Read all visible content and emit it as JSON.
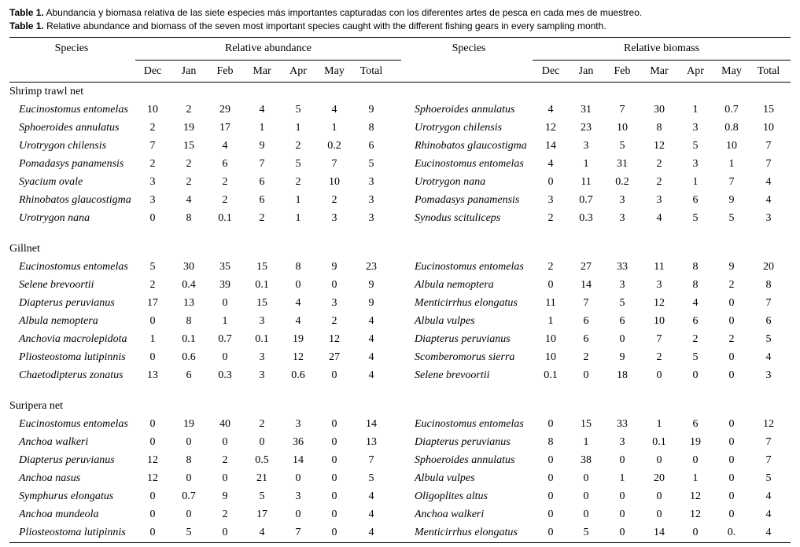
{
  "caption": {
    "es_label": "Table 1.",
    "es_text": "Abundancia y biomasa relativa de las siete especies más importantes capturadas con los diferentes artes de pesca en cada mes de muestreo.",
    "en_label": "Table 1.",
    "en_text": "Relative abundance and biomass of the seven most important species caught with the different fishing gears in every sampling month."
  },
  "table": {
    "left_header": {
      "species": "Species",
      "group": "Relative abundance",
      "months": [
        "Dec",
        "Jan",
        "Feb",
        "Mar",
        "Apr",
        "May",
        "Total"
      ]
    },
    "right_header": {
      "species": "Species",
      "group": "Relative biomass",
      "months": [
        "Dec",
        "Jan",
        "Feb",
        "Mar",
        "Apr",
        "May",
        "Total"
      ]
    },
    "sections": [
      {
        "title": "Shrimp trawl net",
        "rows": [
          {
            "left": [
              "Eucinostomus entomelas",
              "10",
              "2",
              "29",
              "4",
              "5",
              "4",
              "9"
            ],
            "right": [
              "Sphoeroides annulatus",
              "4",
              "31",
              "7",
              "30",
              "1",
              "0.7",
              "15"
            ]
          },
          {
            "left": [
              "Sphoeroides annulatus",
              "2",
              "19",
              "17",
              "1",
              "1",
              "1",
              "8"
            ],
            "right": [
              "Urotrygon chilensis",
              "12",
              "23",
              "10",
              "8",
              "3",
              "0.8",
              "10"
            ]
          },
          {
            "left": [
              "Urotrygon chilensis",
              "7",
              "15",
              "4",
              "9",
              "2",
              "0.2",
              "6"
            ],
            "right": [
              "Rhinobatos glaucostigma",
              "14",
              "3",
              "5",
              "12",
              "5",
              "10",
              "7"
            ]
          },
          {
            "left": [
              "Pomadasys panamensis",
              "2",
              "2",
              "6",
              "7",
              "5",
              "7",
              "5"
            ],
            "right": [
              "Eucinostomus entomelas",
              "4",
              "1",
              "31",
              "2",
              "3",
              "1",
              "7"
            ]
          },
          {
            "left": [
              "Syacium ovale",
              "3",
              "2",
              "2",
              "6",
              "2",
              "10",
              "3"
            ],
            "right": [
              "Urotrygon nana",
              "0",
              "11",
              "0.2",
              "2",
              "1",
              "7",
              "4"
            ]
          },
          {
            "left": [
              "Rhinobatos glaucostigma",
              "3",
              "4",
              "2",
              "6",
              "1",
              "2",
              "3"
            ],
            "right": [
              "Pomadasys panamensis",
              "3",
              "0.7",
              "3",
              "3",
              "6",
              "9",
              "4"
            ]
          },
          {
            "left": [
              "Urotrygon nana",
              "0",
              "8",
              "0.1",
              "2",
              "1",
              "3",
              "3"
            ],
            "right": [
              "Synodus scituliceps",
              "2",
              "0.3",
              "3",
              "4",
              "5",
              "5",
              "3"
            ]
          }
        ]
      },
      {
        "title": "Gillnet",
        "rows": [
          {
            "left": [
              "Eucinostomus entomelas",
              "5",
              "30",
              "35",
              "15",
              "8",
              "9",
              "23"
            ],
            "right": [
              "Eucinostomus entomelas",
              "2",
              "27",
              "33",
              "11",
              "8",
              "9",
              "20"
            ]
          },
          {
            "left": [
              "Selene brevoortii",
              "2",
              "0.4",
              "39",
              "0.1",
              "0",
              "0",
              "9"
            ],
            "right": [
              "Albula nemoptera",
              "0",
              "14",
              "3",
              "3",
              "8",
              "2",
              "8"
            ]
          },
          {
            "left": [
              "Diapterus peruvianus",
              "17",
              "13",
              "0",
              "15",
              "4",
              "3",
              "9"
            ],
            "right": [
              "Menticirrhus elongatus",
              "11",
              "7",
              "5",
              "12",
              "4",
              "0",
              "7"
            ]
          },
          {
            "left": [
              "Albula nemoptera",
              "0",
              "8",
              "1",
              "3",
              "4",
              "2",
              "4"
            ],
            "right": [
              "Albula vulpes",
              "1",
              "6",
              "6",
              "10",
              "6",
              "0",
              "6"
            ]
          },
          {
            "left": [
              "Anchovia macrolepidota",
              "1",
              "0.1",
              "0.7",
              "0.1",
              "19",
              "12",
              "4"
            ],
            "right": [
              "Diapterus peruvianus",
              "10",
              "6",
              "0",
              "7",
              "2",
              "2",
              "5"
            ]
          },
          {
            "left": [
              "Pliosteostoma lutipinnis",
              "0",
              "0.6",
              "0",
              "3",
              "12",
              "27",
              "4"
            ],
            "right": [
              "Scomberomorus sierra",
              "10",
              "2",
              "9",
              "2",
              "5",
              "0",
              "4"
            ]
          },
          {
            "left": [
              "Chaetodipterus zonatus",
              "13",
              "6",
              "0.3",
              "3",
              "0.6",
              "0",
              "4"
            ],
            "right": [
              "Selene brevoortii",
              "0.1",
              "0",
              "18",
              "0",
              "0",
              "0",
              "3"
            ]
          }
        ]
      },
      {
        "title": "Suripera net",
        "rows": [
          {
            "left": [
              "Eucinostomus entomelas",
              "0",
              "19",
              "40",
              "2",
              "3",
              "0",
              "14"
            ],
            "right": [
              "Eucinostomus entomelas",
              "0",
              "15",
              "33",
              "1",
              "6",
              "0",
              "12"
            ]
          },
          {
            "left": [
              "Anchoa walkeri",
              "0",
              "0",
              "0",
              "0",
              "36",
              "0",
              "13"
            ],
            "right": [
              "Diapterus peruvianus",
              "8",
              "1",
              "3",
              "0.1",
              "19",
              "0",
              "7"
            ]
          },
          {
            "left": [
              "Diapterus peruvianus",
              "12",
              "8",
              "2",
              "0.5",
              "14",
              "0",
              "7"
            ],
            "right": [
              "Sphoeroides annulatus",
              "0",
              "38",
              "0",
              "0",
              "0",
              "0",
              "7"
            ]
          },
          {
            "left": [
              "Anchoa nasus",
              "12",
              "0",
              "0",
              "21",
              "0",
              "0",
              "5"
            ],
            "right": [
              "Albula vulpes",
              "0",
              "0",
              "1",
              "20",
              "1",
              "0",
              "5"
            ]
          },
          {
            "left": [
              "Symphurus elongatus",
              "0",
              "0.7",
              "9",
              "5",
              "3",
              "0",
              "4"
            ],
            "right": [
              "Oligoplites altus",
              "0",
              "0",
              "0",
              "0",
              "12",
              "0",
              "4"
            ]
          },
          {
            "left": [
              "Anchoa mundeola",
              "0",
              "0",
              "2",
              "17",
              "0",
              "0",
              "4"
            ],
            "right": [
              "Anchoa walkeri",
              "0",
              "0",
              "0",
              "0",
              "12",
              "0",
              "4"
            ]
          },
          {
            "left": [
              "Pliosteostoma lutipinnis",
              "0",
              "5",
              "0",
              "4",
              "7",
              "0",
              "4"
            ],
            "right": [
              "Menticirrhus elongatus",
              "0",
              "5",
              "0",
              "14",
              "0",
              "0.",
              "4"
            ]
          }
        ]
      }
    ]
  }
}
